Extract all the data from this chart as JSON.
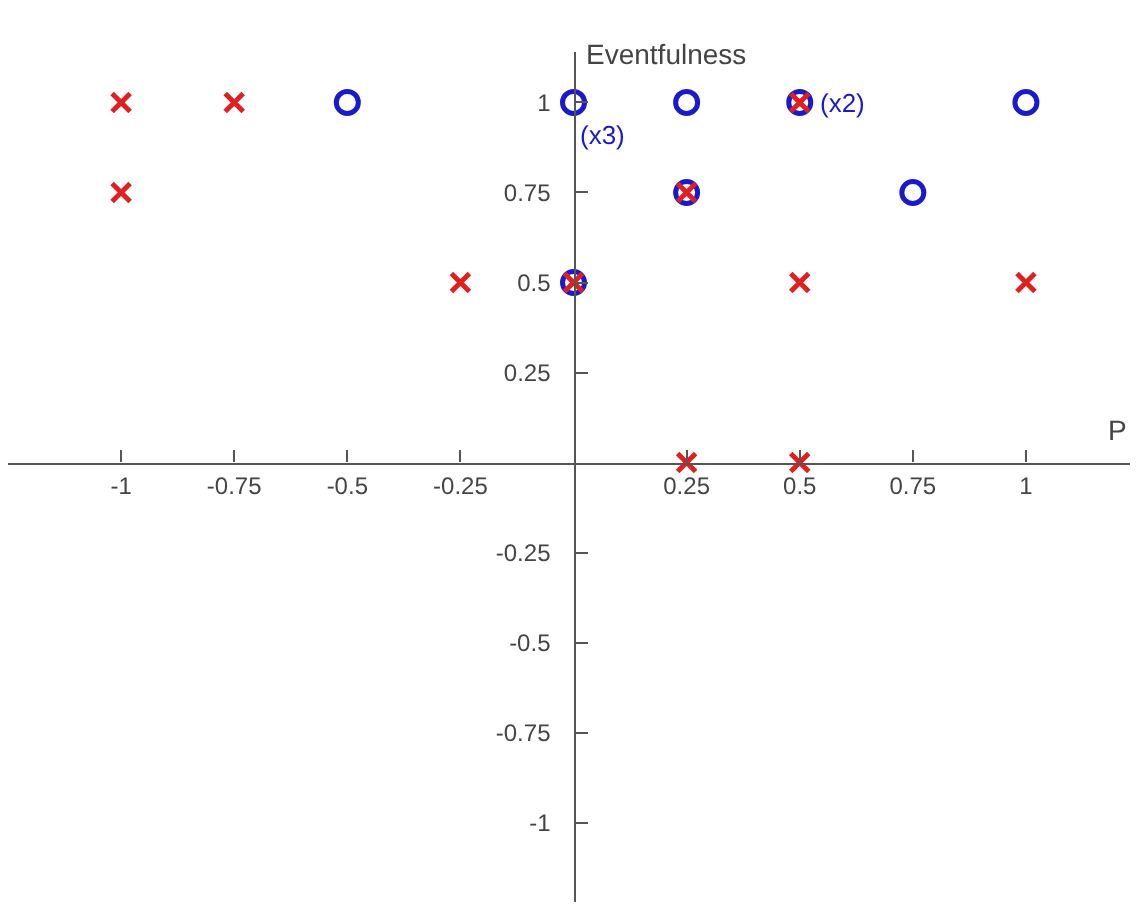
{
  "chart_data": {
    "type": "scatter",
    "xlabel": "P",
    "ylabel": "Eventfulness",
    "xlim": [
      -1.25,
      1.23
    ],
    "ylim": [
      -1.22,
      1.14
    ],
    "xticks": [
      -1,
      -0.75,
      -0.5,
      -0.25,
      0.25,
      0.5,
      0.75,
      1
    ],
    "yticks": [
      -1,
      -0.75,
      -0.5,
      -0.25,
      0.25,
      0.5,
      0.75,
      1
    ],
    "series": [
      {
        "color": "#e02020",
        "marker": "cross",
        "x": [
          -1,
          -0.75,
          -1,
          -0.25,
          0,
          0.25,
          0.5,
          0.5,
          1,
          0.25,
          0.5
        ],
        "values": [
          1,
          1,
          0.75,
          0.5,
          0.5,
          0.75,
          1,
          0.5,
          0.5,
          0,
          0
        ]
      },
      {
        "color": "#1a1acc",
        "marker": "circle",
        "x": [
          -0.5,
          0,
          0.25,
          0.5,
          1,
          0.25,
          0.75,
          0
        ],
        "values": [
          1,
          1,
          1,
          1,
          1,
          0.75,
          0.75,
          0.5
        ]
      }
    ],
    "annotations": [
      {
        "text": "(x3)",
        "x": 0,
        "y": 1
      },
      {
        "text": "(x2)",
        "x": 0.5,
        "y": 1
      }
    ]
  }
}
